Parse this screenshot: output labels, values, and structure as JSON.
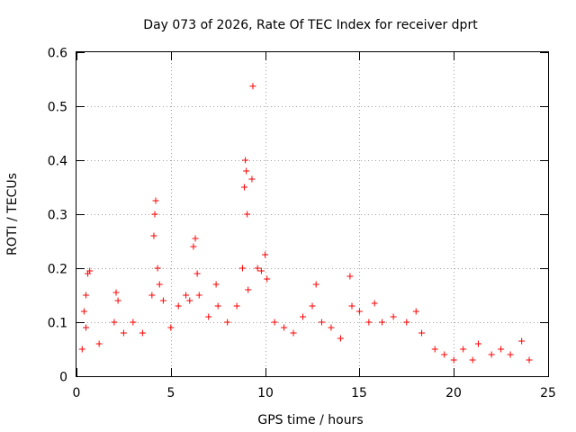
{
  "chart_data": {
    "type": "scatter",
    "title": "Day 073 of 2026, Rate Of TEC Index for receiver dprt",
    "xlabel": "GPS time / hours",
    "ylabel": "ROTI / TECUs",
    "xlim": [
      0,
      25
    ],
    "ylim": [
      0,
      0.6
    ],
    "x_ticks": [
      0,
      5,
      10,
      15,
      20,
      25
    ],
    "x_tick_labels": [
      "0",
      "5",
      "10",
      "15",
      "20",
      "25"
    ],
    "y_ticks": [
      0,
      0.1,
      0.2,
      0.3,
      0.4,
      0.5,
      0.6
    ],
    "y_tick_labels": [
      "0",
      "0.1",
      "0.2",
      "0.3",
      "0.4",
      "0.5",
      "0.6"
    ],
    "grid": true,
    "marker": "+",
    "series": [
      {
        "name": "ROTI",
        "color": "#ff0000",
        "points": [
          [
            0.3,
            0.05
          ],
          [
            0.4,
            0.12
          ],
          [
            0.5,
            0.15
          ],
          [
            0.6,
            0.19
          ],
          [
            0.7,
            0.195
          ],
          [
            0.5,
            0.09
          ],
          [
            1.2,
            0.06
          ],
          [
            2.0,
            0.1
          ],
          [
            2.1,
            0.155
          ],
          [
            2.2,
            0.14
          ],
          [
            2.5,
            0.08
          ],
          [
            3.0,
            0.1
          ],
          [
            3.5,
            0.08
          ],
          [
            4.0,
            0.15
          ],
          [
            4.1,
            0.26
          ],
          [
            4.2,
            0.325
          ],
          [
            4.15,
            0.3
          ],
          [
            4.3,
            0.2
          ],
          [
            4.4,
            0.17
          ],
          [
            4.6,
            0.14
          ],
          [
            5.0,
            0.09
          ],
          [
            5.4,
            0.13
          ],
          [
            5.8,
            0.15
          ],
          [
            6.0,
            0.14
          ],
          [
            6.2,
            0.24
          ],
          [
            6.3,
            0.255
          ],
          [
            6.4,
            0.19
          ],
          [
            6.5,
            0.15
          ],
          [
            7.0,
            0.11
          ],
          [
            7.4,
            0.17
          ],
          [
            7.5,
            0.13
          ],
          [
            8.0,
            0.1
          ],
          [
            8.5,
            0.13
          ],
          [
            8.8,
            0.2
          ],
          [
            8.9,
            0.35
          ],
          [
            8.95,
            0.4
          ],
          [
            9.0,
            0.38
          ],
          [
            9.05,
            0.3
          ],
          [
            9.1,
            0.16
          ],
          [
            9.3,
            0.365
          ],
          [
            9.35,
            0.537
          ],
          [
            9.6,
            0.2
          ],
          [
            9.8,
            0.195
          ],
          [
            10.0,
            0.225
          ],
          [
            10.1,
            0.18
          ],
          [
            10.5,
            0.1
          ],
          [
            11.0,
            0.09
          ],
          [
            11.5,
            0.08
          ],
          [
            12.0,
            0.11
          ],
          [
            12.5,
            0.13
          ],
          [
            12.7,
            0.17
          ],
          [
            13.0,
            0.1
          ],
          [
            13.5,
            0.09
          ],
          [
            14.0,
            0.07
          ],
          [
            14.5,
            0.185
          ],
          [
            14.6,
            0.13
          ],
          [
            15.0,
            0.12
          ],
          [
            15.5,
            0.1
          ],
          [
            15.8,
            0.135
          ],
          [
            16.2,
            0.1
          ],
          [
            16.8,
            0.11
          ],
          [
            17.5,
            0.1
          ],
          [
            18.0,
            0.12
          ],
          [
            18.3,
            0.08
          ],
          [
            19.0,
            0.05
          ],
          [
            19.5,
            0.04
          ],
          [
            20.0,
            0.03
          ],
          [
            20.5,
            0.05
          ],
          [
            21.0,
            0.03
          ],
          [
            21.3,
            0.06
          ],
          [
            22.0,
            0.04
          ],
          [
            22.5,
            0.05
          ],
          [
            23.0,
            0.04
          ],
          [
            23.6,
            0.065
          ],
          [
            24.0,
            0.03
          ]
        ]
      }
    ]
  }
}
